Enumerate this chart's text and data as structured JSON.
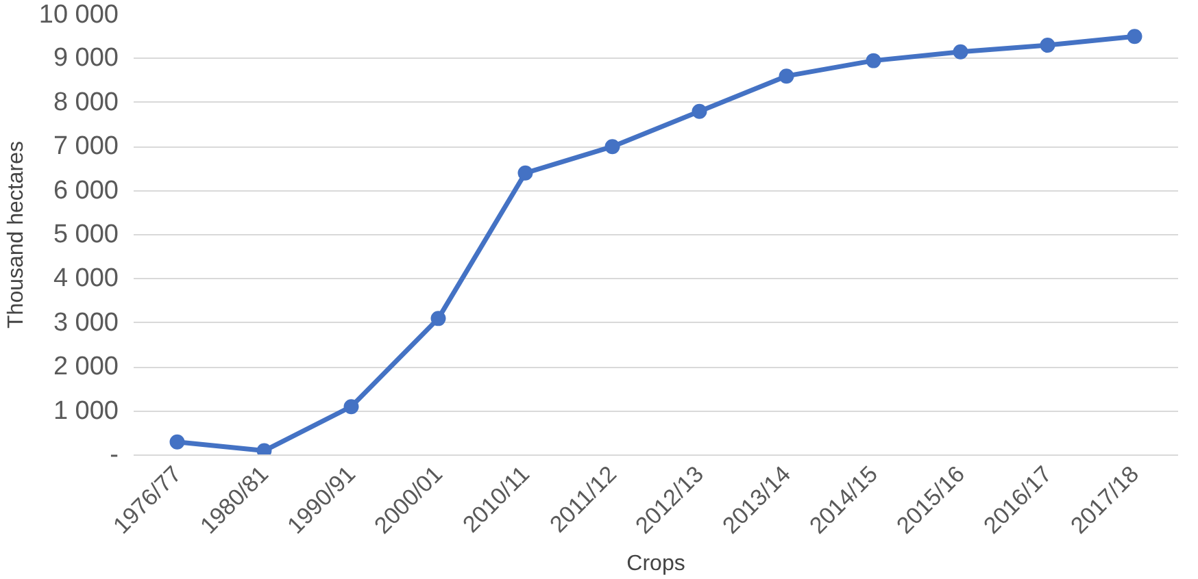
{
  "chart_data": {
    "type": "line",
    "xlabel": "Crops",
    "ylabel": "Thousand hectares",
    "categories": [
      "1976/77",
      "1980/81",
      "1990/91",
      "2000/01",
      "2010/11",
      "2011/12",
      "2012/13",
      "2013/14",
      "2014/15",
      "2015/16",
      "2016/17",
      "2017/18"
    ],
    "series": [
      {
        "color": "#4472c4",
        "values": [
          300,
          100,
          1100,
          3100,
          6400,
          7000,
          7800,
          8600,
          8950,
          9150,
          9300,
          9500
        ]
      }
    ],
    "ylim": [
      0,
      10000
    ],
    "yticks": [
      {
        "value": 0,
        "label": "-"
      },
      {
        "value": 1000,
        "label": "1 000"
      },
      {
        "value": 2000,
        "label": "2 000"
      },
      {
        "value": 3000,
        "label": "3 000"
      },
      {
        "value": 4000,
        "label": "4 000"
      },
      {
        "value": 5000,
        "label": "5 000"
      },
      {
        "value": 6000,
        "label": "6 000"
      },
      {
        "value": 7000,
        "label": "7 000"
      },
      {
        "value": 8000,
        "label": "8 000"
      },
      {
        "value": 9000,
        "label": "9 000"
      },
      {
        "value": 10000,
        "label": "10 000"
      }
    ],
    "grid": "y",
    "marker": "circle",
    "line_style": "solid"
  }
}
